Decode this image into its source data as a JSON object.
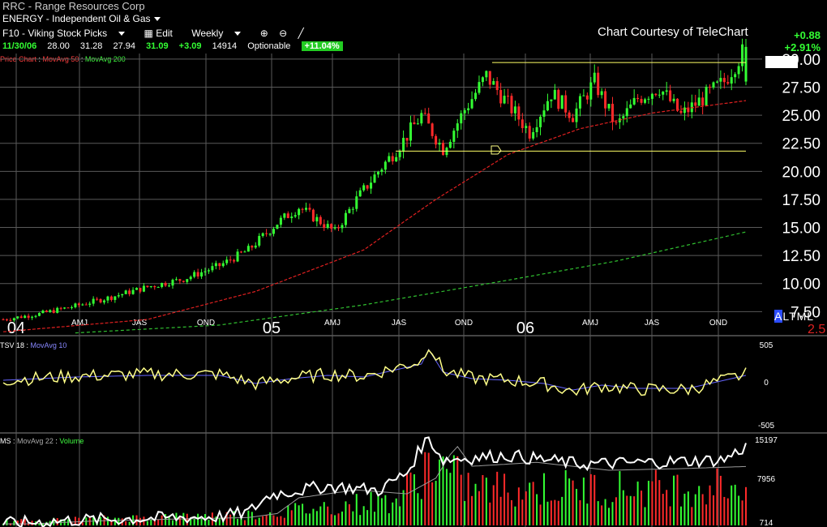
{
  "header": {
    "symbol_line": "RRC - Range Resources Corp",
    "sector_line": "ENERGY - Independent Oil & Gas",
    "toolbar": {
      "list": "F10 - Viking Stock Picks",
      "edit": "Edit",
      "period": "Weekly"
    },
    "quote": {
      "date": "11/30/06",
      "open": "28.00",
      "high": "31.28",
      "low": "27.94",
      "close": "31.09",
      "change": "+3.09",
      "volume": "14914",
      "optionable": "Optionable",
      "pct": "+11.04%"
    },
    "courtesy": "Chart Courtesy of TeleChart",
    "net_change": "+0.88",
    "net_pct": "+2.91%"
  },
  "legends": {
    "price_chart": "Price Chart",
    "ma50": "MovAvg 50",
    "ma200": "MovAvg 200",
    "tsv": "TSV 18",
    "tsv_ma": "MovAvg 10",
    "ms": "MS",
    "ms_ma": "MovAvg 22",
    "volume": "Volume"
  },
  "controls": {
    "a": "A",
    "ltml": "LTML",
    "scale": "2.5"
  },
  "colors": {
    "up": "#33ff33",
    "down": "#ff2a2a",
    "ma50": "#e02020",
    "ma200": "#30c030",
    "tsv": "#ffff88",
    "tsv_ma": "#6666ff",
    "channel": "#ffff66"
  },
  "chart_data": [
    {
      "type": "candlestick",
      "title": "RRC - Range Resources Corp (Weekly)",
      "ylim": [
        5.5,
        30.5
      ],
      "yticks": [
        "30.00",
        "27.50",
        "25.00",
        "22.50",
        "20.00",
        "17.50",
        "15.00",
        "12.50",
        "10.00",
        "7.50"
      ],
      "ytick_values": [
        30,
        27.5,
        25,
        22.5,
        20,
        17.5,
        15,
        12.5,
        10,
        7.5
      ],
      "last_price_label": "31.09",
      "x_labels": [
        "04",
        "AMJ",
        "JAS",
        "OND",
        "05",
        "AMJ",
        "JAS",
        "OND",
        "06",
        "AMJ",
        "JAS",
        "OND"
      ],
      "close_path_key": [
        [
          0,
          6.8
        ],
        [
          10,
          7.3
        ],
        [
          20,
          8.0
        ],
        [
          30,
          8.8
        ],
        [
          40,
          9.7
        ],
        [
          50,
          10.4
        ],
        [
          60,
          11.6
        ],
        [
          68,
          13.0
        ],
        [
          76,
          15.4
        ],
        [
          82,
          16.8
        ],
        [
          88,
          15.5
        ],
        [
          92,
          14.6
        ],
        [
          98,
          17.5
        ],
        [
          104,
          20.0
        ],
        [
          110,
          22.3
        ],
        [
          116,
          25.0
        ],
        [
          122,
          22.0
        ],
        [
          128,
          25.5
        ],
        [
          134,
          28.5
        ],
        [
          140,
          26.0
        ],
        [
          146,
          23.5
        ],
        [
          152,
          27.0
        ],
        [
          158,
          25.0
        ],
        [
          164,
          28.0
        ],
        [
          170,
          24.0
        ],
        [
          176,
          26.5
        ],
        [
          182,
          27.5
        ],
        [
          188,
          25.0
        ],
        [
          194,
          26.5
        ],
        [
          200,
          28.0
        ],
        [
          206,
          31.09
        ]
      ],
      "ma50": [
        [
          0,
          5.7
        ],
        [
          40,
          6.8
        ],
        [
          70,
          9.3
        ],
        [
          100,
          13.0
        ],
        [
          120,
          17.5
        ],
        [
          140,
          21.5
        ],
        [
          160,
          23.8
        ],
        [
          180,
          25.2
        ],
        [
          206,
          26.3
        ]
      ],
      "ma200": [
        [
          20,
          5.6
        ],
        [
          60,
          6.3
        ],
        [
          100,
          8.1
        ],
        [
          140,
          10.3
        ],
        [
          170,
          12.0
        ],
        [
          206,
          14.6
        ]
      ],
      "channel": {
        "upper": 29.7,
        "lower": 21.8,
        "x_start": 112,
        "x_end": 206
      }
    },
    {
      "type": "line",
      "name": "TSV 18",
      "ylim": [
        -505,
        505
      ],
      "yticks": [
        "505",
        "0",
        "-505"
      ],
      "series": [
        {
          "name": "TSV 18"
        },
        {
          "name": "MovAvg 10"
        }
      ]
    },
    {
      "type": "bar",
      "name": "MS / Volume",
      "yticks": [
        "15197",
        "7956",
        "714"
      ],
      "series": [
        {
          "name": "MS"
        },
        {
          "name": "MovAvg 22"
        },
        {
          "name": "Volume"
        }
      ]
    }
  ]
}
